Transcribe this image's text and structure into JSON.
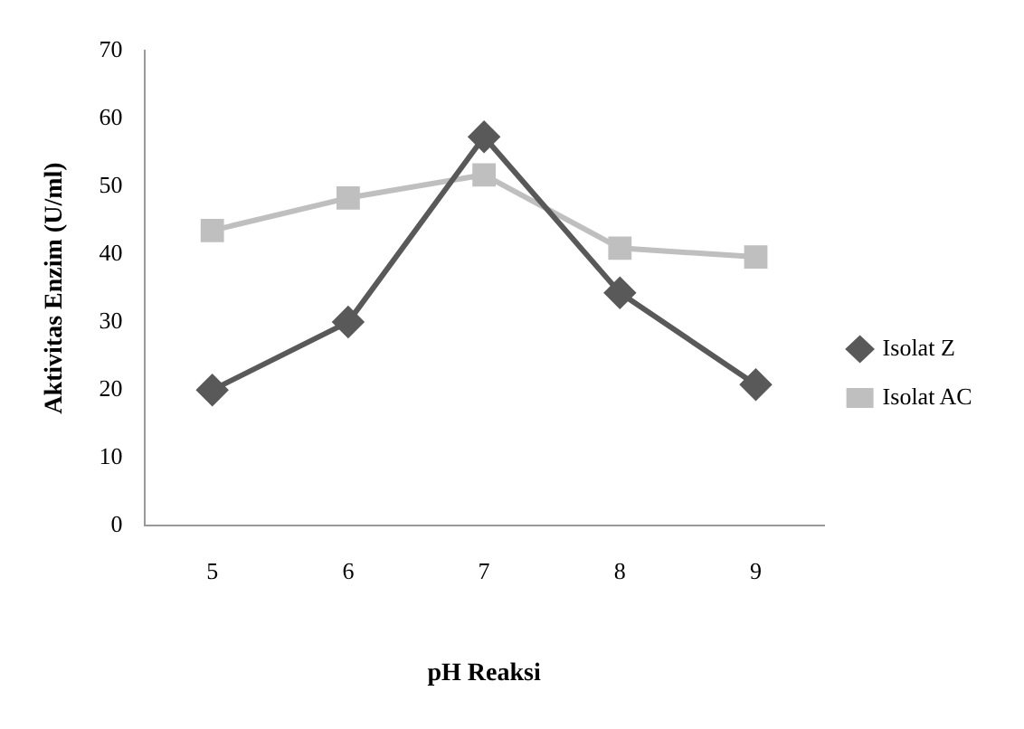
{
  "chart_data": {
    "type": "line",
    "xlabel": "pH Reaksi",
    "ylabel": "Aktivitas Enzim (U/ml)",
    "categories": [
      "5",
      "6",
      "7",
      "8",
      "9"
    ],
    "series": [
      {
        "name": "Isolat Z",
        "color": "#595959",
        "values": [
          20,
          30,
          57.3,
          34.3,
          20.8
        ],
        "marker": "diamond"
      },
      {
        "name": "Isolat AC",
        "color": "#bfbfbf",
        "values": [
          43.5,
          48.3,
          51.7,
          40.9,
          39.6
        ],
        "marker": "square"
      }
    ],
    "ylim": [
      0,
      70
    ],
    "yticks": [
      0,
      10,
      20,
      30,
      40,
      50,
      60,
      70
    ],
    "grid": false,
    "legend": "right",
    "line_style": "solid"
  }
}
